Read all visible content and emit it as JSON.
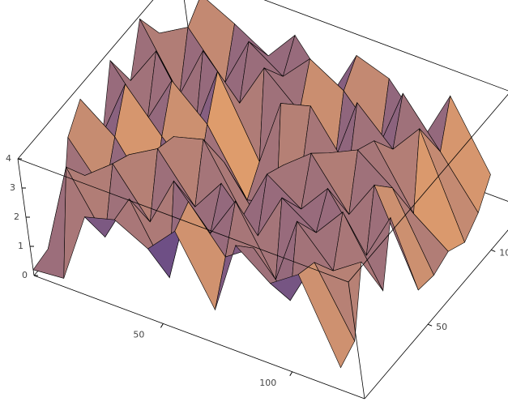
{
  "chart_data": {
    "type": "surface",
    "x": [
      0,
      12,
      24,
      36,
      48,
      60,
      72,
      84,
      96,
      108,
      120
    ],
    "y": [
      0,
      12,
      24,
      36,
      48,
      60,
      72,
      84,
      96,
      108,
      120
    ],
    "z": [
      [
        0.2,
        0.3,
        2.8,
        3.1,
        2.5,
        3.5,
        1.2,
        3.8,
        2.9,
        3.6,
        0.8
      ],
      [
        0.3,
        3.5,
        1.5,
        3.2,
        0.9,
        3.9,
        2.4,
        3.1,
        1.7,
        3.4,
        1.1
      ],
      [
        0.5,
        2.6,
        3.4,
        1.8,
        3.6,
        2.2,
        3.7,
        1.4,
        3.8,
        2.5,
        3.2
      ],
      [
        2.9,
        1.4,
        3.1,
        3.7,
        2.1,
        3.3,
        1.9,
        3.6,
        2.8,
        3.9,
        1.6
      ],
      [
        3.6,
        2.7,
        0.9,
        3.5,
        3.8,
        1.6,
        3.4,
        2.6,
        3.7,
        1.8,
        3.5
      ],
      [
        1.8,
        3.9,
        2.5,
        1.3,
        2.4,
        0.6,
        3.1,
        3.9,
        2.2,
        3.6,
        0.4
      ],
      [
        3.7,
        2.1,
        3.8,
        2.7,
        0.5,
        0.8,
        2.3,
        3.3,
        3.8,
        2.9,
        0.3
      ],
      [
        2.4,
        3.8,
        1.6,
        3.9,
        1.2,
        3.6,
        3.9,
        2.1,
        3.5,
        1.4,
        0.5
      ],
      [
        3.9,
        1.7,
        3.6,
        2.2,
        3.8,
        2.7,
        1.5,
        3.8,
        2.6,
        3.7,
        0.2
      ],
      [
        2.8,
        3.4,
        1.9,
        3.7,
        2.9,
        3.9,
        3.2,
        1.8,
        3.9,
        2.3,
        0.6
      ],
      [
        1.5,
        3.9,
        3.3,
        2.6,
        3.7,
        2.1,
        3.8,
        3.4,
        1.9,
        3.6,
        1.3
      ]
    ],
    "xlim": [
      0,
      128
    ],
    "ylim": [
      0,
      128
    ],
    "zlim": [
      0,
      4
    ],
    "xticks": [
      50,
      100
    ],
    "yticks": [
      50,
      100
    ],
    "zticks": [
      0,
      1,
      2,
      3,
      4
    ],
    "colors": [
      "#6e4f85",
      "#f0a868"
    ]
  }
}
